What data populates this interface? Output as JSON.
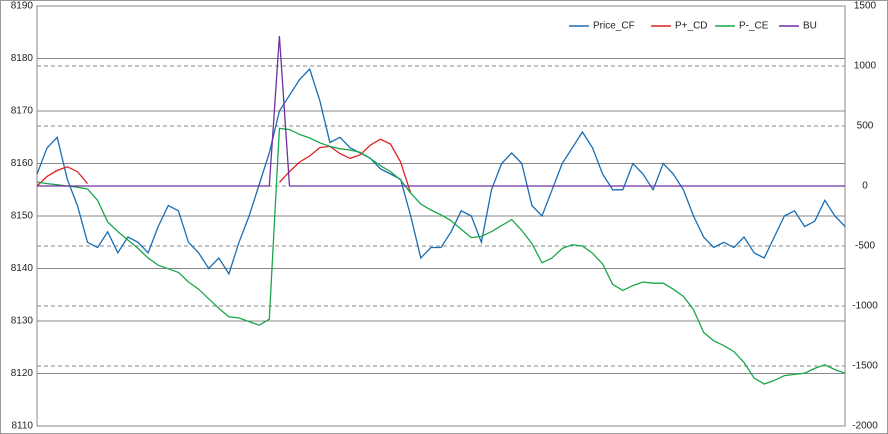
{
  "chart_data": {
    "type": "line",
    "ylim": [
      8110,
      8190
    ],
    "yticks": [
      8110,
      8120,
      8130,
      8140,
      8150,
      8160,
      8170,
      8180,
      8190
    ],
    "y2lim": [
      -2000,
      1500
    ],
    "y2ticks": [
      -2000,
      -1500,
      -1000,
      -500,
      0,
      500,
      1000,
      1500
    ],
    "grid": true,
    "legend": "top-right",
    "series": [
      {
        "name": "Price_CF",
        "color": "#1a6db3",
        "values": [
          8158,
          8163,
          8165,
          8157,
          8152,
          8145,
          8144,
          8147,
          8143,
          8146,
          8145,
          8143,
          8148,
          8152,
          8151,
          8145,
          8143,
          8140,
          8142,
          8139,
          8145,
          8150,
          8156,
          8162,
          8170,
          8173,
          8176,
          8178,
          8172,
          8164,
          8165,
          8163,
          8162,
          8161,
          8159,
          8158,
          8157,
          8150,
          8142,
          8144,
          8144,
          8147,
          8151,
          8150,
          8145,
          8155,
          8160,
          8162,
          8160,
          8152,
          8150,
          8155,
          8160,
          8163,
          8166,
          8163,
          8158,
          8155,
          8155,
          8160,
          8158,
          8155,
          8160,
          8158,
          8155,
          8150,
          8146,
          8144,
          8145,
          8144,
          8146,
          8143,
          8142,
          8146,
          8150,
          8151,
          8148,
          8149,
          8153,
          8150,
          8148
        ]
      },
      {
        "name": "P+_CD",
        "color": "#e02020",
        "axis": "y2",
        "values": [
          0,
          80,
          130,
          160,
          120,
          20,
          null,
          null,
          null,
          null,
          null,
          null,
          null,
          null,
          null,
          null,
          null,
          null,
          null,
          null,
          null,
          null,
          null,
          null,
          30,
          120,
          200,
          250,
          320,
          330,
          270,
          230,
          260,
          340,
          390,
          350,
          200,
          -60,
          null,
          null,
          null,
          null,
          null,
          null,
          null,
          null,
          null,
          null,
          null,
          null,
          null,
          null,
          null,
          null,
          null,
          null,
          null,
          null,
          null,
          null,
          null,
          null,
          null,
          null,
          null,
          null,
          null,
          null,
          null,
          null,
          null,
          null,
          null,
          null,
          null,
          null,
          null,
          null,
          null,
          null,
          null
        ]
      },
      {
        "name": "P-_CE",
        "color": "#1aa64a",
        "axis": "y2",
        "values": [
          33,
          20,
          10,
          0,
          -10,
          -25,
          -120,
          -300,
          -380,
          -450,
          -520,
          -600,
          -660,
          -690,
          -720,
          -800,
          -860,
          -940,
          -1020,
          -1090,
          -1100,
          -1130,
          -1160,
          -1110,
          480,
          470,
          430,
          400,
          360,
          330,
          310,
          300,
          280,
          230,
          170,
          120,
          50,
          -60,
          -150,
          -200,
          -240,
          -290,
          -360,
          -430,
          -420,
          -380,
          -330,
          -280,
          -370,
          -480,
          -640,
          -600,
          -520,
          -490,
          -500,
          -560,
          -650,
          -820,
          -870,
          -830,
          -800,
          -810,
          -810,
          -860,
          -920,
          -1030,
          -1220,
          -1290,
          -1330,
          -1380,
          -1470,
          -1600,
          -1650,
          -1620,
          -1580,
          -1570,
          -1560,
          -1520,
          -1490,
          -1530,
          -1560
        ]
      },
      {
        "name": "BU",
        "color": "#7030a0",
        "axis": "y2",
        "values": [
          0,
          0,
          0,
          0,
          0,
          0,
          0,
          0,
          0,
          0,
          0,
          0,
          0,
          0,
          0,
          0,
          0,
          0,
          0,
          0,
          0,
          0,
          0,
          0,
          1250,
          0,
          0,
          0,
          0,
          0,
          0,
          0,
          0,
          0,
          0,
          0,
          0,
          0,
          0,
          0,
          0,
          0,
          0,
          0,
          0,
          0,
          0,
          0,
          0,
          0,
          0,
          0,
          0,
          0,
          0,
          0,
          0,
          0,
          0,
          0,
          0,
          0,
          0,
          0,
          0,
          0,
          0,
          0,
          0,
          0,
          0,
          0,
          0,
          0,
          0,
          0,
          0,
          0,
          0,
          0,
          0
        ]
      }
    ]
  }
}
